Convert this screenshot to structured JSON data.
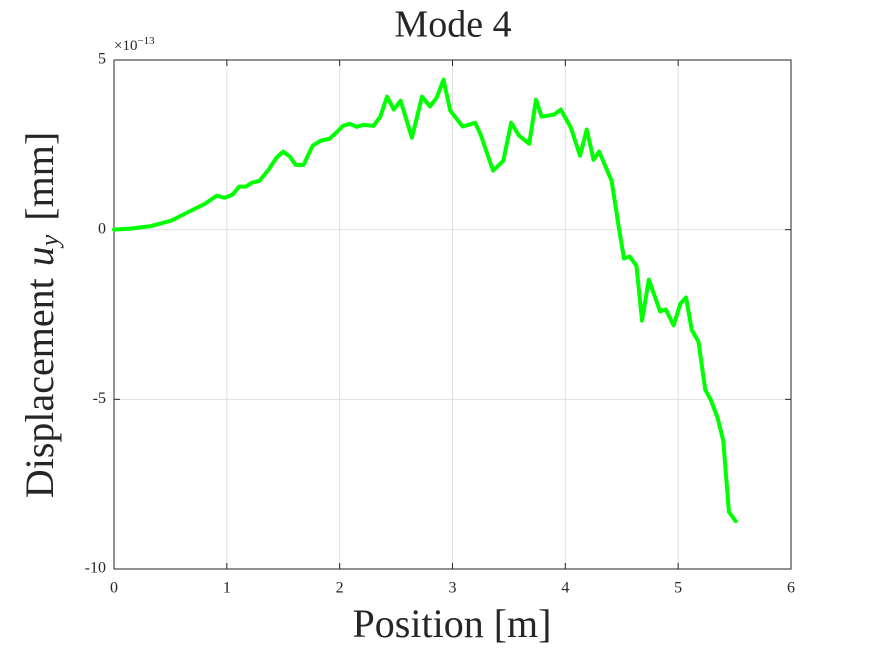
{
  "chart_data": {
    "type": "line",
    "title": "Mode 4",
    "x_label": "Position [m]",
    "y_label": {
      "text": "Displacement",
      "symbol": "u",
      "subscript": "y",
      "unit": "[mm]"
    },
    "y_multiplier": {
      "base": "×10",
      "exponent": "−13"
    },
    "xlim": [
      0,
      6
    ],
    "xticks": [
      0,
      1,
      2,
      3,
      4,
      5,
      6
    ],
    "ylim": [
      -10,
      5
    ],
    "yticks": [
      -10,
      -5,
      0,
      5
    ],
    "grid": true,
    "series": [
      {
        "color": "#00ff00",
        "x": [
          0,
          0.14,
          0.32,
          0.51,
          0.72,
          0.81,
          0.91,
          0.98,
          1.05,
          1.11,
          1.17,
          1.22,
          1.29,
          1.37,
          1.44,
          1.5,
          1.56,
          1.61,
          1.68,
          1.76,
          1.83,
          1.91,
          1.97,
          2.03,
          2.09,
          2.15,
          2.21,
          2.3,
          2.36,
          2.42,
          2.48,
          2.54,
          2.64,
          2.73,
          2.8,
          2.86,
          2.92,
          2.98,
          3.09,
          3.2,
          3.25,
          3.31,
          3.36,
          3.45,
          3.52,
          3.59,
          3.68,
          3.74,
          3.79,
          3.9,
          3.96,
          4.05,
          4.13,
          4.19,
          4.25,
          4.3,
          4.41,
          4.47,
          4.52,
          4.57,
          4.63,
          4.68,
          4.74,
          4.84,
          4.89,
          4.96,
          5.02,
          5.07,
          5.12,
          5.18,
          5.24,
          5.29,
          5.35,
          5.4,
          5.45,
          5.51
        ],
        "values": [
          0,
          0.03,
          0.1,
          0.27,
          0.62,
          0.77,
          1.0,
          0.94,
          1.03,
          1.27,
          1.27,
          1.38,
          1.44,
          1.77,
          2.12,
          2.3,
          2.15,
          1.91,
          1.91,
          2.47,
          2.62,
          2.68,
          2.86,
          3.06,
          3.12,
          3.03,
          3.09,
          3.06,
          3.33,
          3.92,
          3.54,
          3.8,
          2.71,
          3.92,
          3.63,
          3.89,
          4.42,
          3.51,
          3.04,
          3.15,
          2.8,
          2.21,
          1.74,
          2.03,
          3.15,
          2.77,
          2.53,
          3.83,
          3.33,
          3.39,
          3.54,
          3.0,
          2.18,
          2.95,
          2.06,
          2.3,
          1.44,
          0.15,
          -0.85,
          -0.79,
          -1.06,
          -2.68,
          -1.47,
          -2.41,
          -2.35,
          -2.82,
          -2.18,
          -2.0,
          -2.95,
          -3.3,
          -4.72,
          -5.02,
          -5.55,
          -6.23,
          -8.32,
          -8.59
        ]
      }
    ]
  }
}
